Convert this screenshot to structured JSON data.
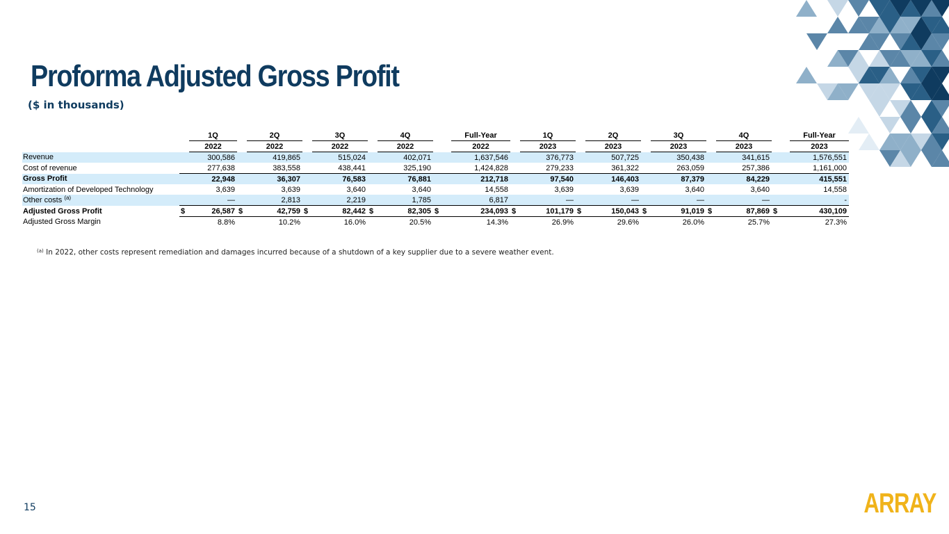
{
  "page": {
    "title": "Proforma Adjusted Gross Profit",
    "subtitle": "($ in thousands)",
    "page_number": "15",
    "logo_text": "ARRAY",
    "colors": {
      "title": "#0f3b5f",
      "row_shading": "#d4ecfa",
      "logo": "#f0b31a"
    }
  },
  "table": {
    "header_periods": [
      "1Q",
      "2Q",
      "3Q",
      "4Q",
      "Full-Year",
      "1Q",
      "2Q",
      "3Q",
      "4Q",
      "Full-Year"
    ],
    "header_years": [
      "2022",
      "2022",
      "2022",
      "2022",
      "2022",
      "2023",
      "2023",
      "2023",
      "2023",
      "2023"
    ],
    "rows": [
      {
        "label": "Revenue",
        "values": [
          "300,586",
          "419,865",
          "515,024",
          "402,071",
          "1,637,546",
          "376,773",
          "507,725",
          "350,438",
          "341,615",
          "1,576,551"
        ]
      },
      {
        "label": "Cost of revenue",
        "values": [
          "277,638",
          "383,558",
          "438,441",
          "325,190",
          "1,424,828",
          "279,233",
          "361,322",
          "263,059",
          "257,386",
          "1,161,000"
        ]
      },
      {
        "label": "Gross Profit",
        "values": [
          "22,948",
          "36,307",
          "76,583",
          "76,881",
          "212,718",
          "97,540",
          "146,403",
          "87,379",
          "84,229",
          "415,551"
        ]
      },
      {
        "label": "Amortization of Developed Technology",
        "values": [
          "3,639",
          "3,639",
          "3,640",
          "3,640",
          "14,558",
          "3,639",
          "3,639",
          "3,640",
          "3,640",
          "14,558"
        ]
      },
      {
        "label": "Other costs",
        "sup": "(a)",
        "values": [
          "—",
          "2,813",
          "2,219",
          "1,785",
          "6,817",
          "—",
          "—",
          "—",
          "—",
          "-"
        ]
      },
      {
        "label": "Adjusted Gross Profit",
        "currency": "$",
        "values": [
          "26,587",
          "42,759",
          "82,442",
          "82,305",
          "234,093",
          "101,179",
          "150,043",
          "91,019",
          "87,869",
          "430,109"
        ]
      },
      {
        "label": "Adjusted Gross Margin",
        "values": [
          "8.8%",
          "10.2%",
          "16.0%",
          "20.5%",
          "14.3%",
          "26.9%",
          "29.6%",
          "26.0%",
          "25.7%",
          "27.3%"
        ]
      }
    ]
  },
  "footnote": {
    "marker": "(a)",
    "text": "In 2022, other costs represent remediation and damages incurred because of a shutdown of a key supplier due to a severe weather event."
  }
}
